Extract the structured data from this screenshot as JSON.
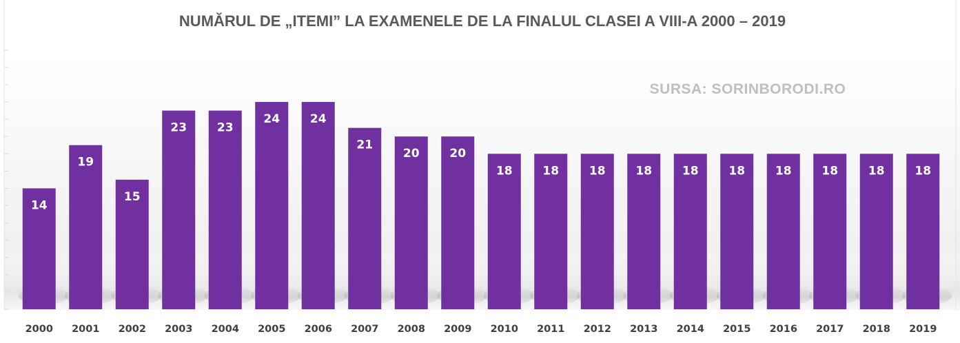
{
  "chart_data": {
    "type": "bar",
    "title": "NUMĂRUL DE „ITEMI” LA EXAMENELE DE LA FINALUL CLASEI A VIII-A 2000 – 2019",
    "annotation": "SURSA: SORINBORODI.RO",
    "categories": [
      "2000",
      "2001",
      "2002",
      "2003",
      "2004",
      "2005",
      "2006",
      "2007",
      "2008",
      "2009",
      "2010",
      "2011",
      "2012",
      "2013",
      "2014",
      "2015",
      "2016",
      "2017",
      "2018",
      "2019"
    ],
    "values": [
      14,
      19,
      15,
      23,
      23,
      24,
      24,
      21,
      20,
      20,
      18,
      18,
      18,
      18,
      18,
      18,
      18,
      18,
      18,
      18
    ],
    "xlabel": "",
    "ylabel": "",
    "ylim": [
      0,
      30
    ],
    "grid": false,
    "legend": "none",
    "colors": {
      "bar": "#7030A0",
      "bar_label": "#FFFFFF",
      "title": "#595959",
      "source": "#BFBFBF",
      "tick": "#404040",
      "gridline": "#D9D9D9"
    }
  }
}
